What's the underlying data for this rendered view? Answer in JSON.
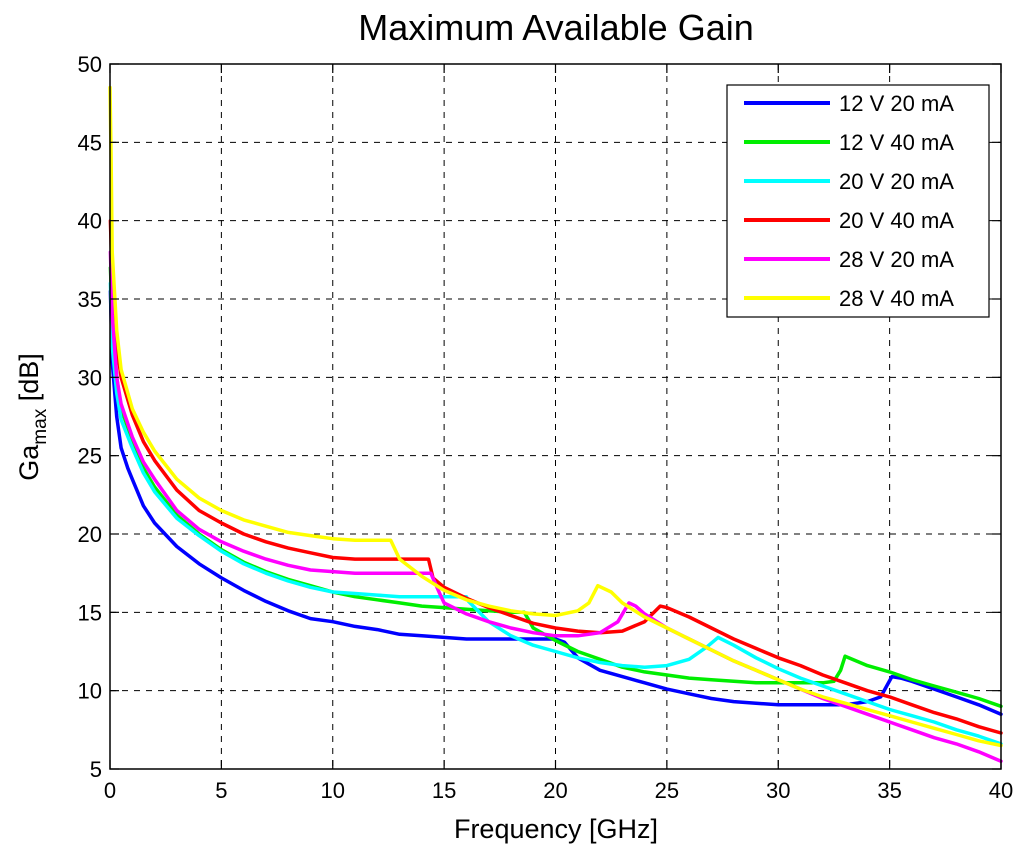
{
  "chart_data": {
    "type": "line",
    "title": "Maximum Available Gain",
    "xlabel": "Frequency [GHz]",
    "ylabel": {
      "main": "Ga",
      "sub": "max",
      "unit": " [dB]"
    },
    "xlim": [
      0,
      40
    ],
    "ylim": [
      5,
      50
    ],
    "xticks": [
      0,
      5,
      10,
      15,
      20,
      25,
      30,
      35,
      40
    ],
    "yticks": [
      5,
      10,
      15,
      20,
      25,
      30,
      35,
      40,
      45,
      50
    ],
    "grid": true,
    "legend_position": "top-right",
    "series": [
      {
        "name": "12 V 20 mA",
        "color": "#0000ff",
        "points": [
          [
            0.02,
            35.5
          ],
          [
            0.1,
            31
          ],
          [
            0.3,
            27.5
          ],
          [
            0.5,
            25.5
          ],
          [
            0.8,
            24.2
          ],
          [
            1,
            23.5
          ],
          [
            1.5,
            21.8
          ],
          [
            2,
            20.7
          ],
          [
            3,
            19.2
          ],
          [
            4,
            18.1
          ],
          [
            5,
            17.2
          ],
          [
            6,
            16.4
          ],
          [
            7,
            15.7
          ],
          [
            8,
            15.1
          ],
          [
            9,
            14.6
          ],
          [
            10,
            14.4
          ],
          [
            11,
            14.1
          ],
          [
            12,
            13.9
          ],
          [
            13,
            13.6
          ],
          [
            14,
            13.5
          ],
          [
            15,
            13.4
          ],
          [
            16,
            13.3
          ],
          [
            18,
            13.3
          ],
          [
            20,
            13.3
          ],
          [
            20.4,
            13.1
          ],
          [
            21,
            12.1
          ],
          [
            22,
            11.3
          ],
          [
            23,
            10.9
          ],
          [
            24,
            10.5
          ],
          [
            25,
            10.1
          ],
          [
            26,
            9.8
          ],
          [
            27,
            9.5
          ],
          [
            28,
            9.3
          ],
          [
            29,
            9.2
          ],
          [
            30,
            9.1
          ],
          [
            32,
            9.1
          ],
          [
            33,
            9.1
          ],
          [
            34,
            9.3
          ],
          [
            34.6,
            9.6
          ],
          [
            35.1,
            10.9
          ],
          [
            35.5,
            10.8
          ],
          [
            36,
            10.6
          ],
          [
            37,
            10.1
          ],
          [
            38,
            9.6
          ],
          [
            39,
            9.1
          ],
          [
            40,
            8.5
          ]
        ]
      },
      {
        "name": "12 V 40 mA",
        "color": "#00ee00",
        "points": [
          [
            0.02,
            37
          ],
          [
            0.1,
            34
          ],
          [
            0.3,
            30
          ],
          [
            0.5,
            28
          ],
          [
            1,
            26
          ],
          [
            1.5,
            24.2
          ],
          [
            2,
            23
          ],
          [
            3,
            21.2
          ],
          [
            4,
            20
          ],
          [
            5,
            19
          ],
          [
            6,
            18.2
          ],
          [
            7,
            17.6
          ],
          [
            8,
            17.1
          ],
          [
            9,
            16.7
          ],
          [
            10,
            16.3
          ],
          [
            11,
            16
          ],
          [
            12,
            15.8
          ],
          [
            13,
            15.6
          ],
          [
            14,
            15.4
          ],
          [
            15,
            15.3
          ],
          [
            16,
            15.2
          ],
          [
            17,
            15.1
          ],
          [
            18,
            15
          ],
          [
            18.6,
            15
          ],
          [
            19,
            14
          ],
          [
            20,
            13.2
          ],
          [
            21,
            12.5
          ],
          [
            22,
            12
          ],
          [
            23,
            11.5
          ],
          [
            24,
            11.2
          ],
          [
            25,
            11
          ],
          [
            26,
            10.8
          ],
          [
            27,
            10.7
          ],
          [
            28,
            10.6
          ],
          [
            29,
            10.5
          ],
          [
            30,
            10.5
          ],
          [
            31,
            10.5
          ],
          [
            32,
            10.5
          ],
          [
            32.5,
            10.6
          ],
          [
            32.8,
            11.3
          ],
          [
            33,
            12.2
          ],
          [
            34,
            11.6
          ],
          [
            35,
            11.2
          ],
          [
            36,
            10.7
          ],
          [
            37,
            10.3
          ],
          [
            38,
            9.9
          ],
          [
            39,
            9.5
          ],
          [
            40,
            9
          ]
        ]
      },
      {
        "name": "20 V 20 mA",
        "color": "#00ffff",
        "points": [
          [
            0.02,
            36
          ],
          [
            0.1,
            32
          ],
          [
            0.3,
            29
          ],
          [
            0.5,
            27.3
          ],
          [
            1,
            25.5
          ],
          [
            1.5,
            23.9
          ],
          [
            2,
            22.7
          ],
          [
            3,
            21
          ],
          [
            4,
            19.9
          ],
          [
            5,
            18.9
          ],
          [
            6,
            18.1
          ],
          [
            7,
            17.5
          ],
          [
            8,
            17
          ],
          [
            9,
            16.6
          ],
          [
            10,
            16.3
          ],
          [
            11,
            16.2
          ],
          [
            12,
            16.1
          ],
          [
            13,
            16
          ],
          [
            14,
            16
          ],
          [
            15,
            16
          ],
          [
            16,
            16
          ],
          [
            16.1,
            15.7
          ],
          [
            17,
            14.4
          ],
          [
            18,
            13.5
          ],
          [
            19,
            12.9
          ],
          [
            20,
            12.5
          ],
          [
            21,
            12.1
          ],
          [
            22,
            11.8
          ],
          [
            23,
            11.6
          ],
          [
            24,
            11.5
          ],
          [
            25,
            11.6
          ],
          [
            26,
            12
          ],
          [
            26.8,
            12.8
          ],
          [
            27.3,
            13.4
          ],
          [
            28,
            12.9
          ],
          [
            29,
            12.1
          ],
          [
            30,
            11.4
          ],
          [
            31,
            10.8
          ],
          [
            32,
            10.3
          ],
          [
            33,
            9.8
          ],
          [
            34,
            9.3
          ],
          [
            35,
            8.8
          ],
          [
            36,
            8.4
          ],
          [
            37,
            8
          ],
          [
            38,
            7.5
          ],
          [
            39,
            7.1
          ],
          [
            40,
            6.6
          ]
        ]
      },
      {
        "name": "20 V 40 mA",
        "color": "#ff0000",
        "points": [
          [
            0.02,
            40
          ],
          [
            0.1,
            36
          ],
          [
            0.3,
            32
          ],
          [
            0.5,
            30
          ],
          [
            1,
            27.6
          ],
          [
            1.5,
            25.9
          ],
          [
            2,
            24.7
          ],
          [
            3,
            22.8
          ],
          [
            4,
            21.5
          ],
          [
            5,
            20.7
          ],
          [
            6,
            20
          ],
          [
            7,
            19.5
          ],
          [
            8,
            19.1
          ],
          [
            9,
            18.8
          ],
          [
            10,
            18.5
          ],
          [
            11,
            18.4
          ],
          [
            12,
            18.4
          ],
          [
            13,
            18.4
          ],
          [
            14,
            18.4
          ],
          [
            14.3,
            18.4
          ],
          [
            14.5,
            17.2
          ],
          [
            15,
            16.6
          ],
          [
            16,
            15.9
          ],
          [
            17,
            15.3
          ],
          [
            18,
            14.8
          ],
          [
            19,
            14.3
          ],
          [
            20,
            14
          ],
          [
            21,
            13.8
          ],
          [
            22,
            13.7
          ],
          [
            23,
            13.8
          ],
          [
            24,
            14.4
          ],
          [
            24.7,
            15.4
          ],
          [
            25,
            15.3
          ],
          [
            26,
            14.7
          ],
          [
            27,
            14
          ],
          [
            28,
            13.3
          ],
          [
            29,
            12.7
          ],
          [
            30,
            12.1
          ],
          [
            31,
            11.6
          ],
          [
            32,
            11
          ],
          [
            33,
            10.5
          ],
          [
            34,
            10
          ],
          [
            35,
            9.6
          ],
          [
            36,
            9.1
          ],
          [
            37,
            8.6
          ],
          [
            38,
            8.2
          ],
          [
            39,
            7.7
          ],
          [
            40,
            7.3
          ]
        ]
      },
      {
        "name": "28 V 20 mA",
        "color": "#ff00ff",
        "points": [
          [
            0.02,
            38
          ],
          [
            0.1,
            34
          ],
          [
            0.3,
            30
          ],
          [
            0.5,
            28.3
          ],
          [
            1,
            26.2
          ],
          [
            1.5,
            24.6
          ],
          [
            2,
            23.5
          ],
          [
            3,
            21.5
          ],
          [
            4,
            20.3
          ],
          [
            5,
            19.5
          ],
          [
            6,
            18.9
          ],
          [
            7,
            18.4
          ],
          [
            8,
            18
          ],
          [
            9,
            17.7
          ],
          [
            10,
            17.6
          ],
          [
            11,
            17.5
          ],
          [
            12,
            17.5
          ],
          [
            13,
            17.5
          ],
          [
            14,
            17.5
          ],
          [
            14.4,
            17.5
          ],
          [
            14.8,
            16.2
          ],
          [
            15,
            15.6
          ],
          [
            16,
            14.9
          ],
          [
            17,
            14.4
          ],
          [
            18,
            14
          ],
          [
            19,
            13.7
          ],
          [
            20,
            13.5
          ],
          [
            21,
            13.5
          ],
          [
            22,
            13.7
          ],
          [
            22.8,
            14.4
          ],
          [
            23.3,
            15.6
          ],
          [
            23.6,
            15.4
          ],
          [
            24,
            14.9
          ],
          [
            25,
            14
          ],
          [
            26,
            13.3
          ],
          [
            27,
            12.6
          ],
          [
            28,
            11.9
          ],
          [
            29,
            11.3
          ],
          [
            30,
            10.7
          ],
          [
            31,
            10.1
          ],
          [
            32,
            9.5
          ],
          [
            33,
            9
          ],
          [
            34,
            8.5
          ],
          [
            35,
            8
          ],
          [
            36,
            7.5
          ],
          [
            37,
            7
          ],
          [
            38,
            6.6
          ],
          [
            39,
            6.1
          ],
          [
            40,
            5.5
          ]
        ]
      },
      {
        "name": "28 V 40 mA",
        "color": "#ffff00",
        "points": [
          [
            0,
            48.5
          ],
          [
            0.05,
            44
          ],
          [
            0.1,
            38
          ],
          [
            0.3,
            33
          ],
          [
            0.5,
            30.5
          ],
          [
            1,
            28
          ],
          [
            1.5,
            26.5
          ],
          [
            2,
            25.3
          ],
          [
            3,
            23.5
          ],
          [
            4,
            22.3
          ],
          [
            5,
            21.5
          ],
          [
            6,
            20.9
          ],
          [
            7,
            20.5
          ],
          [
            8,
            20.1
          ],
          [
            9,
            19.9
          ],
          [
            10,
            19.7
          ],
          [
            11,
            19.6
          ],
          [
            12,
            19.6
          ],
          [
            12.6,
            19.6
          ],
          [
            13,
            18.4
          ],
          [
            14,
            17.3
          ],
          [
            15,
            16.4
          ],
          [
            16,
            15.8
          ],
          [
            17,
            15.4
          ],
          [
            18,
            15.1
          ],
          [
            19,
            14.9
          ],
          [
            20,
            14.8
          ],
          [
            21,
            15.1
          ],
          [
            21.5,
            15.6
          ],
          [
            21.9,
            16.7
          ],
          [
            22.5,
            16.3
          ],
          [
            23,
            15.6
          ],
          [
            24,
            14.7
          ],
          [
            25,
            14
          ],
          [
            26,
            13.3
          ],
          [
            27,
            12.6
          ],
          [
            28,
            11.9
          ],
          [
            29,
            11.3
          ],
          [
            30,
            10.7
          ],
          [
            31,
            10.1
          ],
          [
            32,
            9.6
          ],
          [
            33,
            9.2
          ],
          [
            34,
            8.8
          ],
          [
            35,
            8.4
          ],
          [
            36,
            8
          ],
          [
            37,
            7.6
          ],
          [
            38,
            7.2
          ],
          [
            39,
            6.8
          ],
          [
            40,
            6.5
          ]
        ]
      }
    ]
  }
}
